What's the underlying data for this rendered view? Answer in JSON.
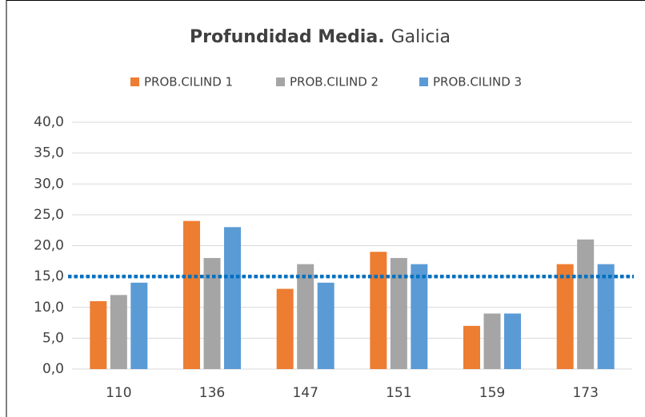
{
  "chart_data": {
    "type": "bar",
    "title": {
      "bold": "Profundidad Media.",
      "regular": "Galicia"
    },
    "categories": [
      "110",
      "136",
      "147",
      "151",
      "159",
      "173"
    ],
    "series": [
      {
        "name": "PROB.CILIND 1",
        "color": "#ed7d31",
        "values": [
          11,
          24,
          13,
          19,
          7,
          17
        ]
      },
      {
        "name": "PROB.CILIND 2",
        "color": "#a5a5a5",
        "values": [
          12,
          18,
          17,
          18,
          9,
          21
        ]
      },
      {
        "name": "PROB.CILIND 3",
        "color": "#5b9bd5",
        "values": [
          14,
          23,
          14,
          17,
          9,
          17
        ]
      }
    ],
    "ylim": [
      0,
      40
    ],
    "yticks": [
      {
        "value": 0,
        "label": "0,0"
      },
      {
        "value": 5,
        "label": "5,0"
      },
      {
        "value": 10,
        "label": "10,0"
      },
      {
        "value": 15,
        "label": "15,0"
      },
      {
        "value": 20,
        "label": "20,0"
      },
      {
        "value": 25,
        "label": "25,0"
      },
      {
        "value": 30,
        "label": "30,0"
      },
      {
        "value": 35,
        "label": "35,0"
      },
      {
        "value": 40,
        "label": "40,0"
      }
    ],
    "grid": true,
    "legend": "top",
    "reference_line": {
      "value": 15,
      "color": "#0070c0"
    }
  }
}
